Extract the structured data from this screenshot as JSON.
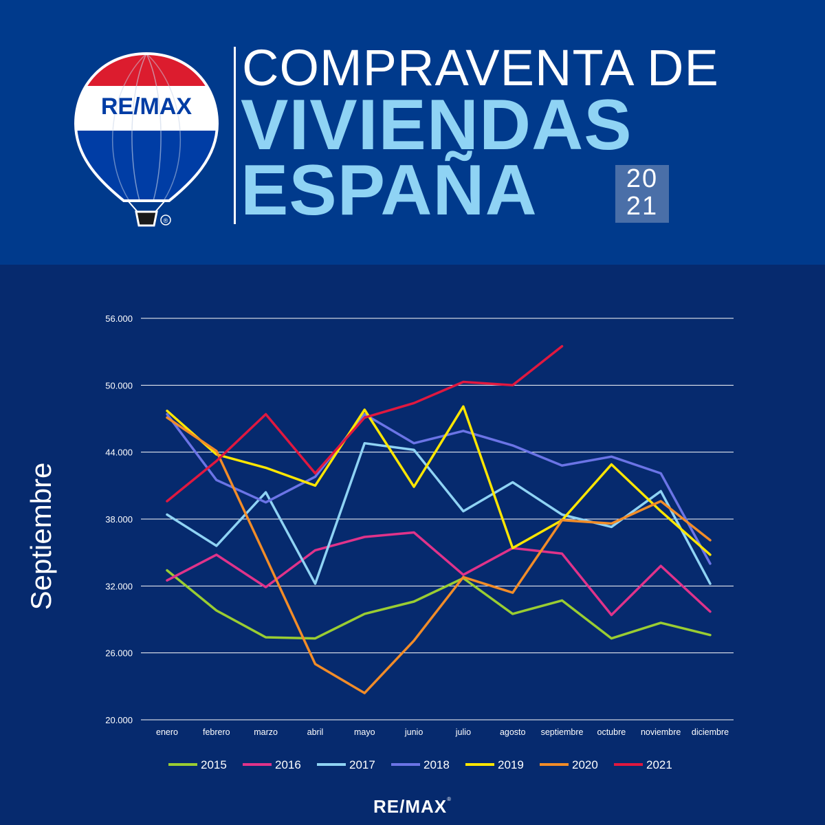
{
  "header": {
    "title_line1": "COMPRAVENTA DE",
    "title_line2": "VIVIENDAS",
    "title_line3": "ESPAÑA",
    "year_top": "20",
    "year_bottom": "21",
    "logo_text": "RE/MAX",
    "registered_mark": "®"
  },
  "colors": {
    "header_bg": "#003a8c",
    "body_bg": "#062a6e",
    "title_light_blue": "#8fd3f4",
    "remax_red": "#dc1c2e",
    "remax_blue": "#003da5"
  },
  "footer": {
    "logo_text": "RE/MAX",
    "registered_mark": "®"
  },
  "chart_data": {
    "type": "line",
    "title": "",
    "side_label": "Septiembre",
    "xlabel": "",
    "ylabel": "",
    "ylim": [
      20000,
      56000
    ],
    "y_ticks": [
      {
        "value": 20000,
        "label": "20.000"
      },
      {
        "value": 26000,
        "label": "26.000"
      },
      {
        "value": 32000,
        "label": "32.000"
      },
      {
        "value": 38000,
        "label": "38.000"
      },
      {
        "value": 44000,
        "label": "44.000"
      },
      {
        "value": 50000,
        "label": "50.000"
      },
      {
        "value": 56000,
        "label": "56.000"
      }
    ],
    "grid": true,
    "legend_position": "bottom",
    "categories": [
      "enero",
      "febrero",
      "marzo",
      "abril",
      "mayo",
      "junio",
      "julio",
      "agosto",
      "septiembre",
      "octubre",
      "noviembre",
      "diciembre"
    ],
    "series": [
      {
        "name": "2015",
        "color": "#9acd32",
        "values": [
          33400,
          29800,
          27400,
          27300,
          29500,
          30600,
          32700,
          29500,
          30700,
          27300,
          28700,
          27600
        ]
      },
      {
        "name": "2016",
        "color": "#e0338a",
        "values": [
          32500,
          34800,
          31900,
          35200,
          36400,
          36800,
          33000,
          35400,
          34900,
          29400,
          33800,
          29700
        ]
      },
      {
        "name": "2017",
        "color": "#8fd3f4",
        "values": [
          38400,
          35600,
          40400,
          32200,
          44800,
          44200,
          38700,
          41300,
          38400,
          37300,
          40500,
          32200
        ]
      },
      {
        "name": "2018",
        "color": "#6b74e6",
        "values": [
          47400,
          41500,
          39500,
          41800,
          47400,
          44800,
          45900,
          44600,
          42800,
          43600,
          42100,
          34000
        ]
      },
      {
        "name": "2019",
        "color": "#ffe600",
        "values": [
          47700,
          43800,
          42600,
          41000,
          47800,
          40900,
          48100,
          35400,
          37900,
          42900,
          38700,
          34800
        ]
      },
      {
        "name": "2020",
        "color": "#f28c28",
        "values": [
          47100,
          44100,
          34600,
          25000,
          22400,
          27100,
          32800,
          31400,
          37900,
          37600,
          39600,
          36100
        ]
      },
      {
        "name": "2021",
        "color": "#e0183f",
        "values": [
          39600,
          43200,
          47400,
          42100,
          47100,
          48400,
          50300,
          50000,
          53500,
          null,
          null,
          null
        ]
      }
    ]
  }
}
